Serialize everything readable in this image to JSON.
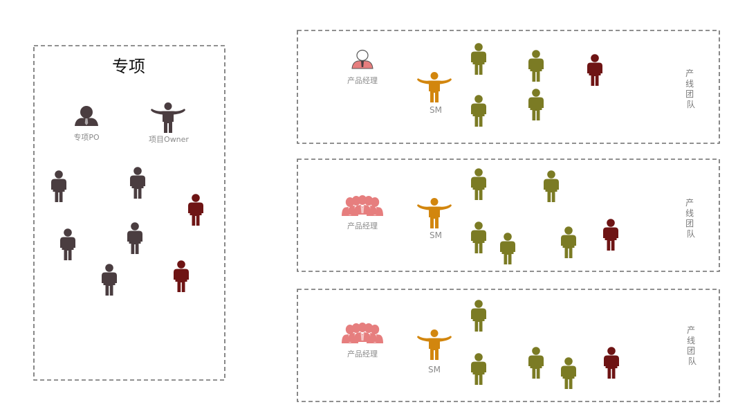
{
  "colors": {
    "dark_gray": "#4a3d40",
    "dark_red": "#6e1414",
    "olive": "#7b7b24",
    "orange": "#d2860e",
    "salmon": "#e67e7e",
    "box_border": "#6b6b6b",
    "label_gray": "#8a8a8a"
  },
  "left_panel": {
    "title": "专项",
    "po_label": "专项PO",
    "owner_label": "项目Owner",
    "po_icon": "person-with-tie-icon",
    "owner_icon": "person-arms-out-icon",
    "members": [
      {
        "color": "dark_gray"
      },
      {
        "color": "dark_gray"
      },
      {
        "color": "dark_red"
      },
      {
        "color": "dark_gray"
      },
      {
        "color": "dark_gray"
      },
      {
        "color": "dark_gray"
      },
      {
        "color": "dark_red"
      }
    ]
  },
  "teams": [
    {
      "pm_label": "产品经理",
      "pm_icon": "person-outline-icon",
      "sm_label": "SM",
      "side_label": "产线团队",
      "members": [
        {
          "color": "olive"
        },
        {
          "color": "olive"
        },
        {
          "color": "dark_red"
        },
        {
          "color": "olive"
        },
        {
          "color": "olive"
        }
      ]
    },
    {
      "pm_label": "产品经理",
      "pm_icon": "people-group-icon",
      "sm_label": "SM",
      "side_label": "产线团队",
      "members": [
        {
          "color": "olive"
        },
        {
          "color": "olive"
        },
        {
          "color": "olive"
        },
        {
          "color": "olive"
        },
        {
          "color": "olive"
        },
        {
          "color": "dark_red"
        }
      ]
    },
    {
      "pm_label": "产品经理",
      "pm_icon": "people-group-icon",
      "sm_label": "SM",
      "side_label": "产线团队",
      "members": [
        {
          "color": "olive"
        },
        {
          "color": "olive"
        },
        {
          "color": "olive"
        },
        {
          "color": "olive"
        },
        {
          "color": "dark_red"
        }
      ]
    }
  ]
}
